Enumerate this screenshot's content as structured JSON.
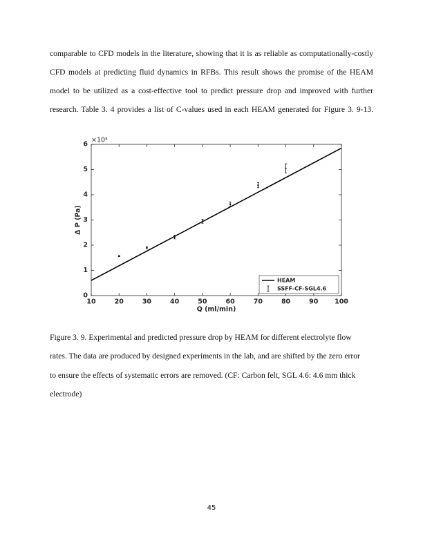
{
  "body_text": {
    "lines": [
      "comparable to CFD models in the literature, showing that it is as reliable as computationally-costly",
      "CFD models at predicting fluid dynamics in RFBs. This result shows the promise of the HEAM",
      "model to be utilized as a cost-effective tool to predict pressure drop and improved with further",
      "research. Table 3. 4 provides a list of C-values used in each HEAM generated for Figure 3. 9-13."
    ]
  },
  "chart_data": {
    "type": "line",
    "x_label": "Q (ml/min)",
    "y_label": "Δ P (Pa)",
    "y_multiplier": "×10⁴",
    "xlim": [
      10,
      100
    ],
    "xticks": [
      10,
      20,
      30,
      40,
      50,
      60,
      70,
      80,
      90,
      100
    ],
    "ylim": [
      0,
      6
    ],
    "yticks": [
      0,
      1,
      2,
      3,
      4,
      5,
      6
    ],
    "legend": "lower right",
    "series": [
      {
        "name": "HEAM",
        "style": "line",
        "color": "#000000",
        "x": [
          10,
          100
        ],
        "values": [
          0.6,
          5.85
        ]
      },
      {
        "name": "SSFF-CF-SGL4.6",
        "style": "errorbar",
        "color": "#000000",
        "x": [
          20,
          30,
          40,
          50,
          60,
          70,
          80
        ],
        "values": [
          1.57,
          1.9,
          2.32,
          2.95,
          3.62,
          4.38,
          5.05
        ],
        "errors": [
          0.02,
          0.04,
          0.07,
          0.08,
          0.09,
          0.1,
          0.18
        ]
      }
    ]
  },
  "caption": {
    "lines": [
      "Figure 3. 9. Experimental and predicted pressure drop by HEAM for different electrolyte flow",
      "rates. The data are produced by designed experiments in the lab, and are shifted by the zero error",
      "to ensure the effects of systematic errors are removed. (CF: Carbon felt, SGL 4.6: 4.6 mm thick",
      "electrode)"
    ]
  },
  "page_number": "45"
}
